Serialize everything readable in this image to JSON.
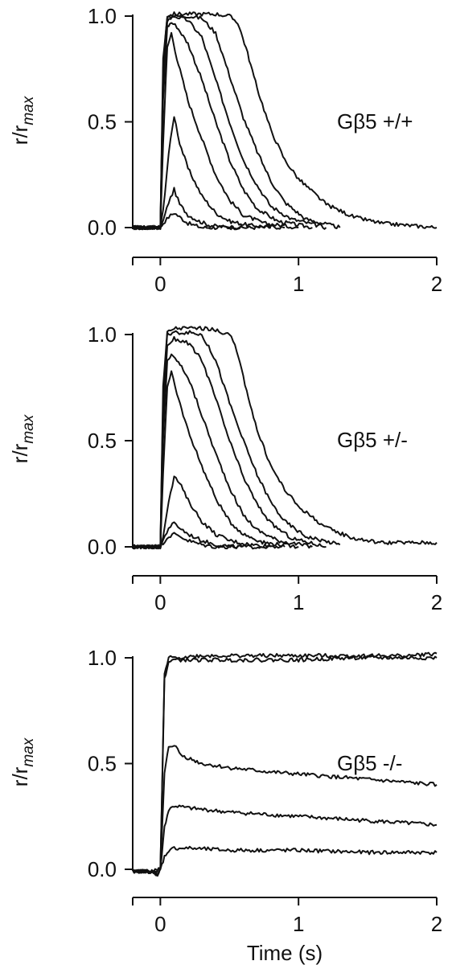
{
  "figure": {
    "xlabel": "Time (s)"
  },
  "chart_data": [
    {
      "type": "line",
      "label": "Gβ5 +/+",
      "ylabel_main": "r/r",
      "ylabel_sub": "max",
      "xlim": [
        -0.2,
        2.0
      ],
      "ylim": [
        0.0,
        1.0
      ],
      "xticks": [
        "0",
        "1",
        "2"
      ],
      "yticks": [
        "0.0",
        "0.5",
        "1.0"
      ],
      "series": [
        {
          "x": [
            -0.2,
            0.0,
            0.02,
            0.06,
            0.1,
            0.14,
            0.2,
            0.3,
            0.6
          ],
          "y": [
            0.0,
            0.0,
            0.02,
            0.05,
            0.07,
            0.05,
            0.02,
            0.0,
            0.0
          ]
        },
        {
          "x": [
            -0.2,
            0.0,
            0.02,
            0.06,
            0.1,
            0.14,
            0.2,
            0.28,
            0.36,
            0.5,
            0.8
          ],
          "y": [
            0.0,
            0.0,
            0.03,
            0.12,
            0.18,
            0.11,
            0.06,
            0.03,
            0.01,
            0.0,
            0.0
          ]
        },
        {
          "x": [
            -0.2,
            0.0,
            0.02,
            0.06,
            0.1,
            0.14,
            0.2,
            0.3,
            0.4,
            0.5,
            0.65,
            0.9
          ],
          "y": [
            0.0,
            0.0,
            0.08,
            0.35,
            0.53,
            0.4,
            0.28,
            0.15,
            0.07,
            0.03,
            0.01,
            0.0
          ]
        },
        {
          "x": [
            -0.2,
            0.0,
            0.02,
            0.05,
            0.08,
            0.12,
            0.2,
            0.3,
            0.4,
            0.5,
            0.6,
            0.75,
            1.0
          ],
          "y": [
            0.0,
            0.0,
            0.4,
            0.85,
            0.92,
            0.8,
            0.6,
            0.42,
            0.25,
            0.13,
            0.06,
            0.02,
            0.0
          ]
        },
        {
          "x": [
            -0.2,
            0.0,
            0.02,
            0.05,
            0.08,
            0.12,
            0.2,
            0.3,
            0.4,
            0.5,
            0.6,
            0.7,
            0.85,
            1.1
          ],
          "y": [
            0.0,
            0.0,
            0.6,
            0.95,
            0.97,
            0.95,
            0.87,
            0.7,
            0.5,
            0.32,
            0.18,
            0.09,
            0.03,
            0.0
          ]
        },
        {
          "x": [
            -0.2,
            0.0,
            0.02,
            0.05,
            0.1,
            0.2,
            0.3,
            0.4,
            0.5,
            0.6,
            0.7,
            0.8,
            0.95,
            1.2
          ],
          "y": [
            0.0,
            0.0,
            0.7,
            0.98,
            1.0,
            0.98,
            0.9,
            0.7,
            0.5,
            0.32,
            0.2,
            0.1,
            0.04,
            0.0
          ]
        },
        {
          "x": [
            -0.2,
            0.0,
            0.02,
            0.05,
            0.1,
            0.2,
            0.3,
            0.4,
            0.5,
            0.6,
            0.7,
            0.8,
            0.9,
            1.05,
            1.3
          ],
          "y": [
            0.0,
            0.0,
            0.75,
            1.0,
            1.0,
            1.0,
            0.99,
            0.92,
            0.72,
            0.52,
            0.36,
            0.22,
            0.12,
            0.04,
            0.0
          ]
        },
        {
          "x": [
            -0.2,
            0.0,
            0.02,
            0.05,
            0.1,
            0.2,
            0.3,
            0.4,
            0.5,
            0.56,
            0.62,
            0.7,
            0.8,
            0.9,
            1.0,
            1.2,
            1.4,
            1.6,
            2.0
          ],
          "y": [
            0.0,
            0.0,
            0.8,
            1.0,
            1.01,
            1.01,
            1.01,
            1.01,
            1.0,
            0.97,
            0.85,
            0.66,
            0.46,
            0.32,
            0.23,
            0.11,
            0.05,
            0.02,
            0.0
          ]
        }
      ]
    },
    {
      "type": "line",
      "label": "Gβ5 +/-",
      "ylabel_main": "r/r",
      "ylabel_sub": "max",
      "xlim": [
        -0.2,
        2.0
      ],
      "ylim": [
        0.0,
        1.0
      ],
      "xticks": [
        "0",
        "1",
        "2"
      ],
      "yticks": [
        "0.0",
        "0.5",
        "1.0"
      ],
      "series": [
        {
          "x": [
            -0.2,
            0.0,
            0.02,
            0.06,
            0.1,
            0.14,
            0.2,
            0.3,
            0.4,
            0.6
          ],
          "y": [
            0.0,
            0.0,
            0.02,
            0.05,
            0.06,
            0.05,
            0.03,
            0.01,
            0.0,
            0.0
          ]
        },
        {
          "x": [
            -0.2,
            0.0,
            0.02,
            0.06,
            0.1,
            0.14,
            0.2,
            0.3,
            0.4,
            0.55,
            0.8
          ],
          "y": [
            0.0,
            0.0,
            0.03,
            0.09,
            0.11,
            0.09,
            0.06,
            0.03,
            0.01,
            0.0,
            0.0
          ]
        },
        {
          "x": [
            -0.2,
            0.0,
            0.02,
            0.06,
            0.1,
            0.14,
            0.2,
            0.3,
            0.4,
            0.5,
            0.65,
            0.9
          ],
          "y": [
            0.0,
            0.0,
            0.05,
            0.22,
            0.33,
            0.3,
            0.22,
            0.12,
            0.06,
            0.03,
            0.01,
            0.0
          ]
        },
        {
          "x": [
            -0.2,
            0.0,
            0.02,
            0.05,
            0.08,
            0.12,
            0.2,
            0.3,
            0.4,
            0.5,
            0.6,
            0.75,
            1.0
          ],
          "y": [
            0.0,
            0.0,
            0.35,
            0.75,
            0.82,
            0.72,
            0.55,
            0.38,
            0.23,
            0.12,
            0.06,
            0.02,
            0.0
          ]
        },
        {
          "x": [
            -0.2,
            0.0,
            0.02,
            0.05,
            0.08,
            0.12,
            0.2,
            0.3,
            0.4,
            0.5,
            0.6,
            0.7,
            0.85,
            1.1
          ],
          "y": [
            0.0,
            0.0,
            0.5,
            0.88,
            0.9,
            0.88,
            0.8,
            0.62,
            0.44,
            0.28,
            0.15,
            0.08,
            0.03,
            0.0
          ]
        },
        {
          "x": [
            -0.2,
            0.0,
            0.02,
            0.05,
            0.1,
            0.2,
            0.3,
            0.4,
            0.5,
            0.6,
            0.7,
            0.8,
            0.95,
            1.2
          ],
          "y": [
            0.0,
            0.0,
            0.6,
            0.95,
            0.98,
            0.96,
            0.88,
            0.7,
            0.5,
            0.33,
            0.2,
            0.11,
            0.04,
            0.0
          ]
        },
        {
          "x": [
            -0.2,
            0.0,
            0.02,
            0.05,
            0.1,
            0.2,
            0.3,
            0.4,
            0.5,
            0.6,
            0.7,
            0.8,
            0.9,
            1.05,
            1.3
          ],
          "y": [
            0.0,
            0.0,
            0.7,
            1.0,
            1.01,
            1.01,
            1.0,
            0.88,
            0.68,
            0.5,
            0.34,
            0.21,
            0.12,
            0.05,
            0.01
          ]
        },
        {
          "x": [
            -0.2,
            0.0,
            0.02,
            0.05,
            0.1,
            0.2,
            0.3,
            0.4,
            0.5,
            0.54,
            0.6,
            0.7,
            0.8,
            0.9,
            1.0,
            1.2,
            1.4,
            1.6,
            1.8,
            2.0
          ],
          "y": [
            0.0,
            0.0,
            0.75,
            1.01,
            1.03,
            1.03,
            1.03,
            1.02,
            1.0,
            0.95,
            0.8,
            0.55,
            0.38,
            0.27,
            0.19,
            0.09,
            0.04,
            0.02,
            0.02,
            0.02
          ]
        }
      ]
    },
    {
      "type": "line",
      "label": "Gβ5 -/-",
      "ylabel_main": "r/r",
      "ylabel_sub": "max",
      "xlim": [
        -0.2,
        2.0
      ],
      "ylim": [
        0.0,
        1.0
      ],
      "xticks": [
        "0",
        "1",
        "2"
      ],
      "yticks": [
        "0.0",
        "0.5",
        "1.0"
      ],
      "series": [
        {
          "x": [
            -0.2,
            -0.05,
            -0.02,
            0.0,
            0.03,
            0.06,
            0.1,
            0.2,
            0.5,
            1.0,
            1.5,
            2.0
          ],
          "y": [
            -0.01,
            -0.01,
            -0.03,
            0.0,
            0.06,
            0.09,
            0.1,
            0.1,
            0.09,
            0.09,
            0.08,
            0.08
          ]
        },
        {
          "x": [
            -0.2,
            -0.05,
            -0.02,
            0.0,
            0.03,
            0.06,
            0.1,
            0.2,
            0.5,
            1.0,
            1.5,
            2.0
          ],
          "y": [
            -0.01,
            -0.01,
            -0.03,
            0.0,
            0.2,
            0.28,
            0.3,
            0.29,
            0.27,
            0.25,
            0.23,
            0.21
          ]
        },
        {
          "x": [
            -0.2,
            -0.05,
            -0.02,
            0.0,
            0.03,
            0.06,
            0.1,
            0.15,
            0.3,
            0.5,
            0.8,
            1.2,
            1.6,
            2.0
          ],
          "y": [
            -0.01,
            -0.01,
            -0.03,
            0.0,
            0.45,
            0.58,
            0.59,
            0.54,
            0.5,
            0.48,
            0.46,
            0.44,
            0.42,
            0.4
          ]
        },
        {
          "x": [
            -0.2,
            -0.05,
            0.0,
            0.03,
            0.06,
            0.1,
            0.3,
            0.6,
            1.0,
            1.4,
            1.8,
            2.0
          ],
          "y": [
            -0.01,
            -0.01,
            0.0,
            0.9,
            0.98,
            0.99,
            0.99,
            0.99,
            0.99,
            1.0,
            1.0,
            1.0
          ]
        },
        {
          "x": [
            -0.2,
            -0.05,
            0.0,
            0.03,
            0.06,
            0.1,
            0.3,
            0.6,
            1.0,
            1.4,
            1.8,
            2.0
          ],
          "y": [
            -0.01,
            -0.01,
            0.0,
            0.92,
            1.0,
            1.0,
            1.01,
            1.01,
            1.01,
            1.01,
            1.01,
            1.02
          ]
        }
      ]
    }
  ]
}
